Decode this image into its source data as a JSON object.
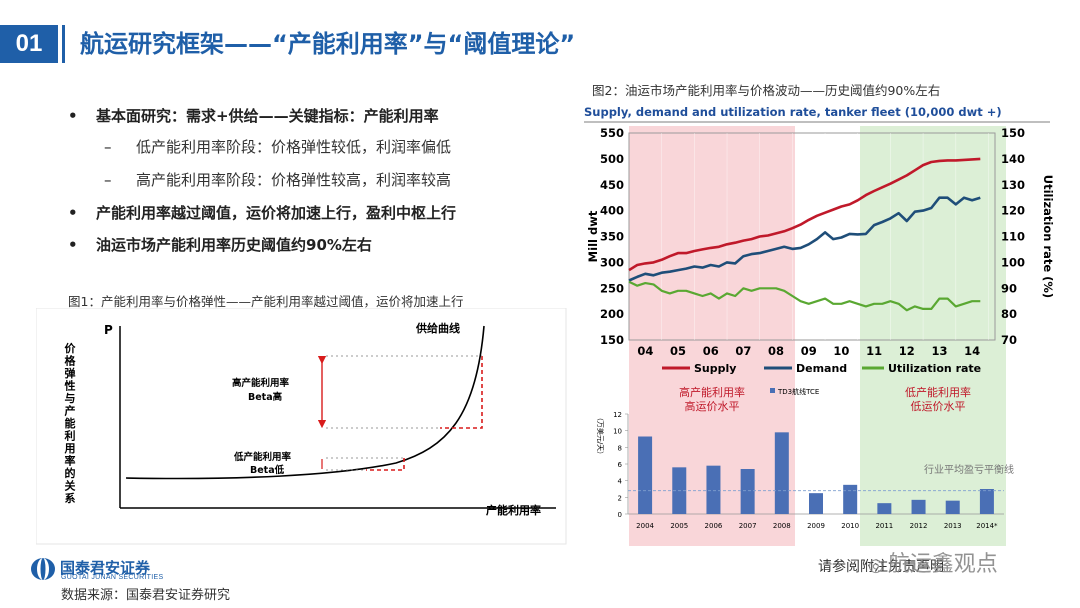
{
  "header": {
    "section_number": "01",
    "title": "航运研究框架——“产能利用率”与“阈值理论”"
  },
  "bullets": [
    {
      "level": 1,
      "text": "基本面研究：需求+供给——关键指标：产能利用率"
    },
    {
      "level": 2,
      "text": "低产能利用率阶段：价格弹性较低，利润率偏低"
    },
    {
      "level": 2,
      "text": "高产能利用率阶段：价格弹性较高，利润率较高"
    },
    {
      "level": 1,
      "text": "产能利用率越过阈值，运价将加速上行，盈利中枢上行"
    },
    {
      "level": 1,
      "text": "油运市场产能利用率历史阈值约90%左右"
    }
  ],
  "figure1": {
    "caption": "图1：产能利用率与价格弹性——产能利用率越过阈值，运价将加速上行",
    "y_axis_label": "价格弹性与产能利用率的关系",
    "p_label": "P",
    "x_axis_label": "产能利用率",
    "curve_label": "供给曲线",
    "high_label_1": "高产能利用率",
    "high_label_2": "Beta高",
    "low_label_1": "低产能利用率",
    "low_label_2": "Beta低"
  },
  "figure2": {
    "caption": "图2：油运市场产能利用率与价格波动——历史阈值约90%左右",
    "top_chart_title": "Supply, demand and utilization rate, tanker fleet (10,000 dwt +)",
    "region_high_1": "高产能利用率",
    "region_high_2": "高运价水平",
    "region_low_1": "低产能利用率",
    "region_low_2": "低运价水平",
    "breakeven_label": "行业平均盈亏平衡线",
    "bar_legend": "TD3航线TCE",
    "bar_y_label": "（万美元/天）"
  },
  "chart_data": [
    {
      "type": "line",
      "title": "Supply, demand and utilization rate, tanker fleet (10,000 dwt +)",
      "x_ticks": [
        "04",
        "05",
        "06",
        "07",
        "08",
        "09",
        "10",
        "11",
        "12",
        "13",
        "14"
      ],
      "x_range": [
        2003.5,
        2014.7
      ],
      "ylabel": "Mill dwt",
      "ylim": [
        150,
        550
      ],
      "y_ticks": [
        150,
        200,
        250,
        300,
        350,
        400,
        450,
        500,
        550
      ],
      "y2label": "Utilization rate (%)",
      "y2lim": [
        70,
        150
      ],
      "y2_ticks": [
        70,
        80,
        90,
        100,
        110,
        120,
        130,
        140,
        150
      ],
      "legend_position": "bottom",
      "colors": {
        "Supply": "#c0192a",
        "Demand": "#1f4e79",
        "Utilization rate": "#5aa832"
      },
      "series": [
        {
          "name": "Supply",
          "axis": "left",
          "points": [
            [
              2003.5,
              285
            ],
            [
              2003.75,
              295
            ],
            [
              2004.0,
              298
            ],
            [
              2004.25,
              300
            ],
            [
              2004.5,
              305
            ],
            [
              2004.75,
              312
            ],
            [
              2005.0,
              318
            ],
            [
              2005.25,
              318
            ],
            [
              2005.5,
              322
            ],
            [
              2005.75,
              325
            ],
            [
              2006.0,
              328
            ],
            [
              2006.25,
              330
            ],
            [
              2006.5,
              335
            ],
            [
              2006.75,
              338
            ],
            [
              2007.0,
              342
            ],
            [
              2007.25,
              345
            ],
            [
              2007.5,
              350
            ],
            [
              2007.75,
              352
            ],
            [
              2008.0,
              356
            ],
            [
              2008.25,
              360
            ],
            [
              2008.5,
              366
            ],
            [
              2008.75,
              373
            ],
            [
              2009.0,
              382
            ],
            [
              2009.25,
              390
            ],
            [
              2009.5,
              396
            ],
            [
              2009.75,
              402
            ],
            [
              2010.0,
              408
            ],
            [
              2010.25,
              412
            ],
            [
              2010.5,
              420
            ],
            [
              2010.75,
              430
            ],
            [
              2011.0,
              438
            ],
            [
              2011.25,
              445
            ],
            [
              2011.5,
              452
            ],
            [
              2011.75,
              460
            ],
            [
              2012.0,
              468
            ],
            [
              2012.25,
              478
            ],
            [
              2012.5,
              488
            ],
            [
              2012.75,
              494
            ],
            [
              2013.0,
              496
            ],
            [
              2013.25,
              497
            ],
            [
              2013.5,
              497
            ],
            [
              2013.75,
              498
            ],
            [
              2014.0,
              499
            ],
            [
              2014.25,
              500
            ]
          ]
        },
        {
          "name": "Demand",
          "axis": "left",
          "points": [
            [
              2003.5,
              265
            ],
            [
              2003.75,
              272
            ],
            [
              2004.0,
              278
            ],
            [
              2004.25,
              275
            ],
            [
              2004.5,
              280
            ],
            [
              2004.75,
              282
            ],
            [
              2005.0,
              285
            ],
            [
              2005.25,
              288
            ],
            [
              2005.5,
              292
            ],
            [
              2005.75,
              290
            ],
            [
              2006.0,
              295
            ],
            [
              2006.25,
              292
            ],
            [
              2006.5,
              300
            ],
            [
              2006.75,
              298
            ],
            [
              2007.0,
              312
            ],
            [
              2007.25,
              316
            ],
            [
              2007.5,
              318
            ],
            [
              2007.75,
              322
            ],
            [
              2008.0,
              326
            ],
            [
              2008.25,
              330
            ],
            [
              2008.5,
              326
            ],
            [
              2008.75,
              328
            ],
            [
              2009.0,
              335
            ],
            [
              2009.25,
              345
            ],
            [
              2009.5,
              358
            ],
            [
              2009.75,
              345
            ],
            [
              2010.0,
              348
            ],
            [
              2010.25,
              355
            ],
            [
              2010.5,
              354
            ],
            [
              2010.75,
              355
            ],
            [
              2011.0,
              372
            ],
            [
              2011.25,
              378
            ],
            [
              2011.5,
              385
            ],
            [
              2011.75,
              395
            ],
            [
              2012.0,
              380
            ],
            [
              2012.25,
              398
            ],
            [
              2012.5,
              400
            ],
            [
              2012.75,
              405
            ],
            [
              2013.0,
              425
            ],
            [
              2013.25,
              425
            ],
            [
              2013.5,
              412
            ],
            [
              2013.75,
              425
            ],
            [
              2014.0,
              420
            ],
            [
              2014.25,
              425
            ]
          ]
        },
        {
          "name": "Utilization rate",
          "axis": "right",
          "points": [
            [
              2003.5,
              92.5
            ],
            [
              2003.75,
              91
            ],
            [
              2004.0,
              92
            ],
            [
              2004.25,
              91.5
            ],
            [
              2004.5,
              89
            ],
            [
              2004.75,
              88
            ],
            [
              2005.0,
              89
            ],
            [
              2005.25,
              89
            ],
            [
              2005.5,
              88
            ],
            [
              2005.75,
              87
            ],
            [
              2006.0,
              88
            ],
            [
              2006.25,
              86
            ],
            [
              2006.5,
              88
            ],
            [
              2006.75,
              87
            ],
            [
              2007.0,
              90
            ],
            [
              2007.25,
              89
            ],
            [
              2007.5,
              90
            ],
            [
              2007.75,
              90
            ],
            [
              2008.0,
              90
            ],
            [
              2008.25,
              89
            ],
            [
              2008.5,
              87
            ],
            [
              2008.75,
              85
            ],
            [
              2009.0,
              84
            ],
            [
              2009.25,
              85
            ],
            [
              2009.5,
              86
            ],
            [
              2009.75,
              84
            ],
            [
              2010.0,
              84
            ],
            [
              2010.25,
              85
            ],
            [
              2010.5,
              84
            ],
            [
              2010.75,
              83
            ],
            [
              2011.0,
              84
            ],
            [
              2011.25,
              84
            ],
            [
              2011.5,
              85
            ],
            [
              2011.75,
              84
            ],
            [
              2012.0,
              81.5
            ],
            [
              2012.25,
              83
            ],
            [
              2012.5,
              82
            ],
            [
              2012.75,
              82
            ],
            [
              2013.0,
              86
            ],
            [
              2013.25,
              86
            ],
            [
              2013.5,
              83
            ],
            [
              2013.75,
              84
            ],
            [
              2014.0,
              85
            ],
            [
              2014.25,
              85
            ]
          ]
        }
      ]
    },
    {
      "type": "bar",
      "categories": [
        "2004",
        "2005",
        "2006",
        "2007",
        "2008",
        "2009",
        "2010",
        "2011",
        "2012",
        "2013",
        "2014*"
      ],
      "series": [
        {
          "name": "TD3航线TCE",
          "values": [
            9.3,
            5.6,
            5.8,
            5.4,
            9.8,
            2.5,
            3.5,
            1.3,
            1.7,
            1.6,
            3.0
          ]
        }
      ],
      "ylabel": "（万美元/天）",
      "ylim": [
        0,
        12
      ],
      "y_ticks": [
        0,
        2,
        4,
        6,
        8,
        10,
        12
      ],
      "reference_line": {
        "value": 2.8,
        "label": "行业平均盈亏平衡线"
      },
      "color": "#4a6fb5"
    }
  ],
  "footer": {
    "logo_text_cn": "国泰君安证券",
    "logo_text_en": "GUOTAI JUNAN SECURITIES",
    "source": "数据来源：国泰君安证券研究",
    "disclaimer": "请参阅附注免责声明",
    "watermark": "航运鑫观点"
  }
}
